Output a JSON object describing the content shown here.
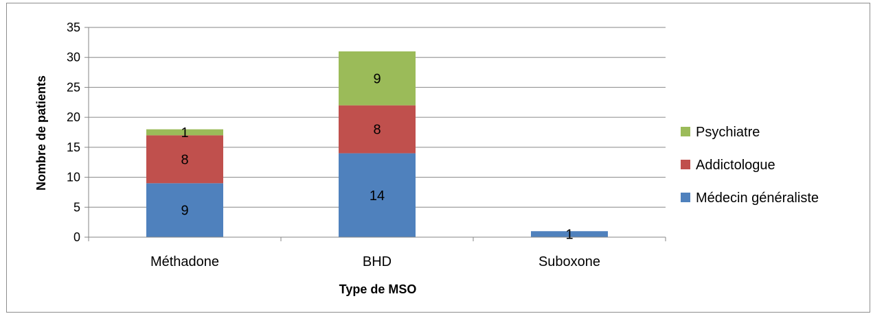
{
  "chart_data": {
    "type": "bar",
    "stacked": true,
    "title": "",
    "xlabel": "Type de MSO",
    "ylabel": "Nombre de patients",
    "categories": [
      "Méthadone",
      "BHD",
      "Suboxone"
    ],
    "series": [
      {
        "name": "Médecin généraliste",
        "values": [
          9,
          14,
          1
        ],
        "color": "#4f81bd"
      },
      {
        "name": "Addictologue",
        "values": [
          8,
          8,
          0
        ],
        "color": "#c0504d"
      },
      {
        "name": "Psychiatre",
        "values": [
          1,
          9,
          0
        ],
        "color": "#9bbb59"
      }
    ],
    "ylim": [
      0,
      35
    ],
    "yticks": [
      0,
      5,
      10,
      15,
      20,
      25,
      30,
      35
    ],
    "grid": true,
    "legend": "right"
  }
}
